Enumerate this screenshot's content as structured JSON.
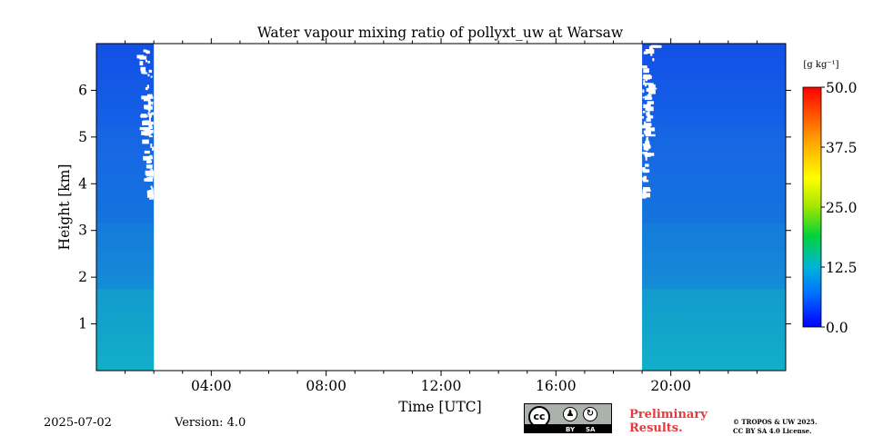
{
  "chart_data": {
    "type": "heatmap",
    "title": "Water vapour mixing ratio of pollyxt_uw at Warsaw",
    "xlabel": "Time [UTC]",
    "ylabel": "Height [km]",
    "x_range_hours": [
      0,
      24
    ],
    "y_range_km": [
      0,
      7
    ],
    "x_tick_labels": [
      "04:00",
      "08:00",
      "12:00",
      "16:00",
      "20:00"
    ],
    "x_tick_hours": [
      4,
      8,
      12,
      16,
      20
    ],
    "y_tick_labels": [
      "1",
      "2",
      "3",
      "4",
      "5",
      "6"
    ],
    "y_ticks_km": [
      1,
      2,
      3,
      4,
      5,
      6
    ],
    "colorbar": {
      "unit": "[g kg⁻¹]",
      "min": 0.0,
      "max": 50.0,
      "tick_labels": [
        "50.0",
        "37.5",
        "25.0",
        "12.5",
        "0.0"
      ],
      "ticks": [
        50.0,
        37.5,
        25.0,
        12.5,
        0.0
      ],
      "colors": [
        "#0000ff",
        "#0080ff",
        "#00c8c8",
        "#00e000",
        "#ffff00",
        "#ffa000",
        "#ff0000"
      ]
    },
    "data_segments": [
      {
        "start_hour": 0.0,
        "end_hour": 2.0,
        "max_height_km": 7.0
      },
      {
        "start_hour": 19.0,
        "end_hour": 24.0,
        "max_height_km": 7.0
      }
    ],
    "no_data_interval_hours": [
      2.0,
      19.0
    ],
    "grid": false
  },
  "footer": {
    "date": "2025-07-02",
    "version": "Version: 4.0",
    "license_badge": {
      "cc": "cc",
      "by": "BY",
      "sa": "SA"
    },
    "preliminary_line1": "Preliminary",
    "preliminary_line2": "Results.",
    "copyright_line1": "© TROPOS & UW 2025.",
    "copyright_line2": "CC BY SA 4.0 License."
  }
}
